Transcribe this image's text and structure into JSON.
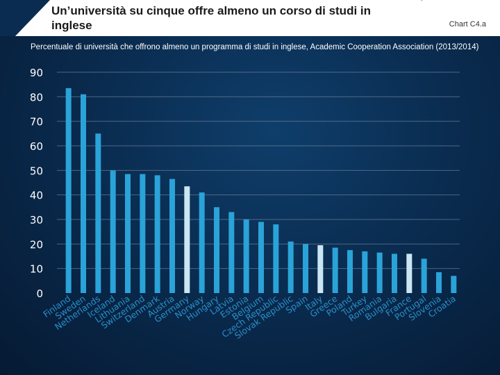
{
  "header": {
    "title": "Un’università su cinque offre almeno un corso di studi in inglese",
    "chart_id": "Chart C4.a"
  },
  "subtitle": "Percentuale di università che offrono almeno un programma di studi in inglese, Academic Cooperation Association (2013/2014)",
  "colors": {
    "bar": "#2aa3d8",
    "highlight_bar": "#cbe6f3",
    "axis_label": "#2a8fc8",
    "grid": "#7c8ea3"
  },
  "chart_data": {
    "type": "bar",
    "title": "Un’università su cinque offre almeno un corso di studi in inglese",
    "xlabel": "",
    "ylabel": "",
    "ylim": [
      0,
      90
    ],
    "yticks": [
      0,
      10,
      20,
      30,
      40,
      50,
      60,
      70,
      80,
      90
    ],
    "grid": true,
    "categories": [
      "Finland",
      "Sweden",
      "Netherlands",
      "Iceland",
      "Lithuania",
      "Switzerland",
      "Denmark",
      "Austria",
      "Germany",
      "Norway",
      "Hungary",
      "Latvia",
      "Estonia",
      "Belgium",
      "Czech Republic",
      "Slovak Republic",
      "Spain",
      "Italy",
      "Greece",
      "Poland",
      "Turkey",
      "Romania",
      "Bulgaria",
      "France",
      "Portugal",
      "Slovenia",
      "Croatia"
    ],
    "values": [
      83.5,
      81,
      65,
      50,
      48.5,
      48.5,
      48,
      46.5,
      43.5,
      41,
      35,
      33,
      30,
      29,
      28,
      21,
      20,
      19.5,
      18.5,
      17.5,
      17,
      16.5,
      16,
      16,
      14,
      8.5,
      7
    ],
    "highlighted": [
      "Germany",
      "Italy",
      "France"
    ]
  }
}
